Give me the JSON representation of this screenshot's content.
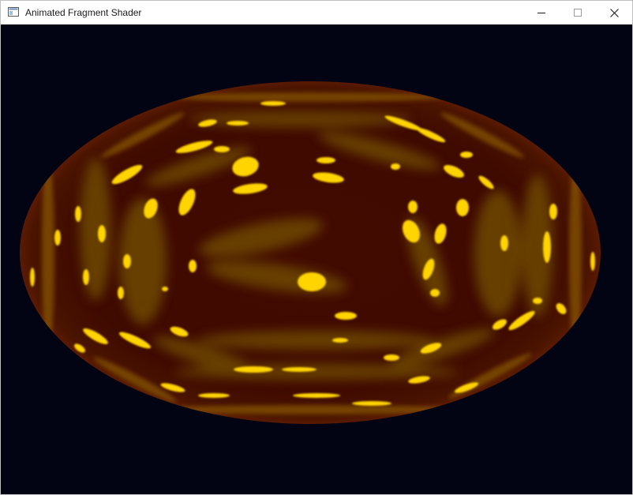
{
  "window": {
    "title": "Animated Fragment Shader",
    "icon": "app-window-icon",
    "controls": {
      "minimize": "minimize-icon",
      "maximize": "maximize-icon",
      "close": "close-icon"
    }
  },
  "colors": {
    "background": "#020414",
    "ellipse_base": "#3f0a00",
    "blob_dim": "#7a5200",
    "blob_bright": "#ffd700"
  }
}
